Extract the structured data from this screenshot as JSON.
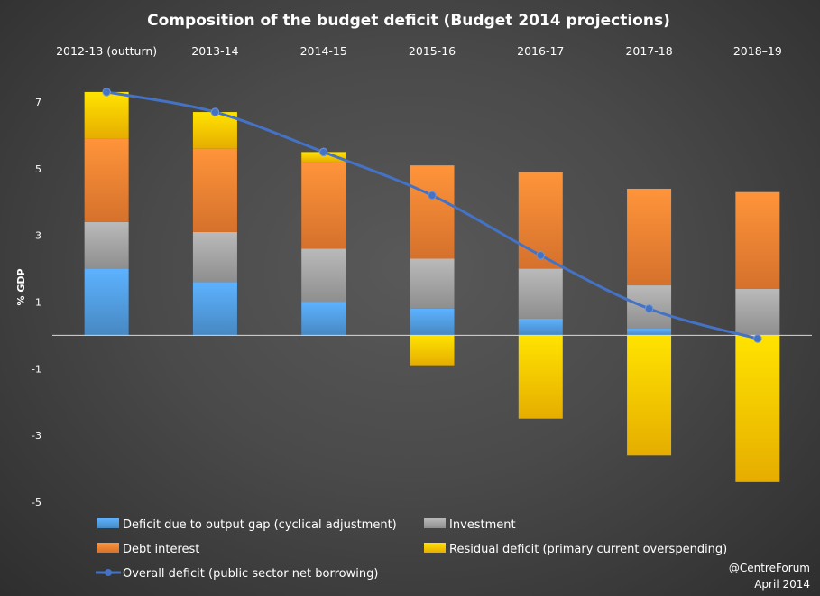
{
  "chart_data": {
    "type": "bar",
    "title": "Composition  of the budget deficit (Budget 2014 projections)",
    "ylabel": "% GDP",
    "ylim": [
      -5.2,
      7.8
    ],
    "yticks": [
      7,
      5,
      3,
      1,
      -1,
      -3,
      -5
    ],
    "categories": [
      "2012-13 (outturn)",
      "2013-14",
      "2014-15",
      "2015-16",
      "2016-17",
      "2017-18",
      "2018–19"
    ],
    "series": [
      {
        "name": "Deficit due to  output gap (cyclical adjustment)",
        "kind": "bar",
        "color": "#4f97d8",
        "values": [
          2.0,
          1.6,
          1.0,
          0.8,
          0.5,
          0.2,
          0.0
        ]
      },
      {
        "name": "Investment",
        "kind": "bar",
        "color": "#9e9e9e",
        "values": [
          1.4,
          1.5,
          1.6,
          1.5,
          1.5,
          1.3,
          1.4
        ]
      },
      {
        "name": "Debt interest",
        "kind": "bar",
        "color": "#ed7d31",
        "values": [
          2.5,
          2.5,
          2.6,
          2.8,
          2.9,
          2.9,
          2.9
        ]
      },
      {
        "name": "Residual deficit (primary current overspending)",
        "kind": "bar",
        "color": "#ffc000",
        "values": [
          1.4,
          1.1,
          0.3,
          -0.9,
          -2.5,
          -3.6,
          -4.4
        ]
      },
      {
        "name": "Overall deficit (public sector net borrowing)",
        "kind": "line",
        "color": "#4472c4",
        "values": [
          7.3,
          6.7,
          5.5,
          4.2,
          2.4,
          0.8,
          -0.1
        ]
      }
    ],
    "legend_position": "bottom"
  },
  "credit": {
    "line1": "@CentreForum",
    "line2": "April 2014"
  }
}
